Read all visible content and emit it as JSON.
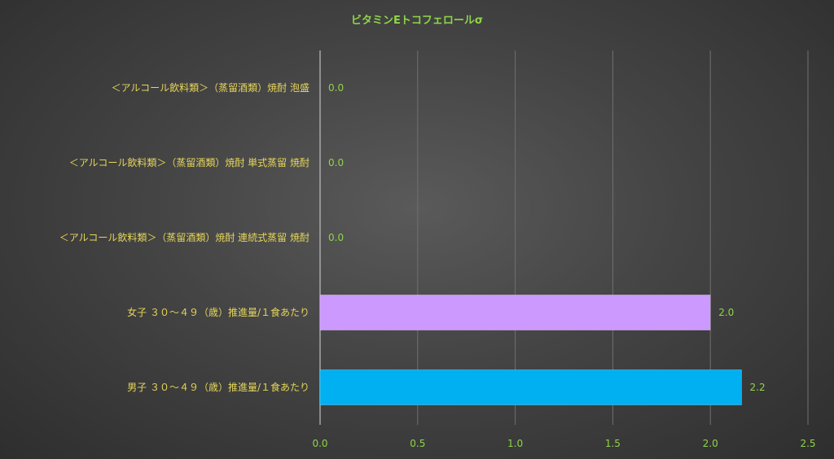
{
  "chart_data": {
    "type": "bar",
    "orientation": "horizontal",
    "title": "ビタミンEトコフェロールσ",
    "xlabel": "",
    "ylabel": "",
    "categories": [
      "＜アルコール飲料類＞（蒸留酒類）焼酎 泡盛",
      "＜アルコール飲料類＞（蒸留酒類）焼酎 単式蒸留 焼酎",
      "＜アルコール飲料類＞（蒸留酒類）焼酎 連続式蒸留 焼酎",
      "女子 ３０～４９（歳）推進量/１食あたり",
      "男子 ３０～４９（歳）推進量/１食あたり"
    ],
    "values": [
      0.0,
      0.0,
      0.0,
      2.0,
      2.16
    ],
    "value_labels": [
      "0.0",
      "0.0",
      "0.0",
      "2.0",
      "2.2"
    ],
    "bar_colors": [
      "#cccccc",
      "#cccccc",
      "#cccccc",
      "#cc99ff",
      "#00b0f0"
    ],
    "xlim": [
      0,
      2.5
    ],
    "xticks": [
      "0.0",
      "0.5",
      "1.0",
      "1.5",
      "2.0",
      "2.5"
    ],
    "grid": true,
    "legend": "none",
    "colors": {
      "category_label": "#e6d65a",
      "tick_label": "#8fd44a",
      "value_label": "#8fd44a",
      "title": "#8fd44a",
      "grid": "#707070"
    }
  }
}
